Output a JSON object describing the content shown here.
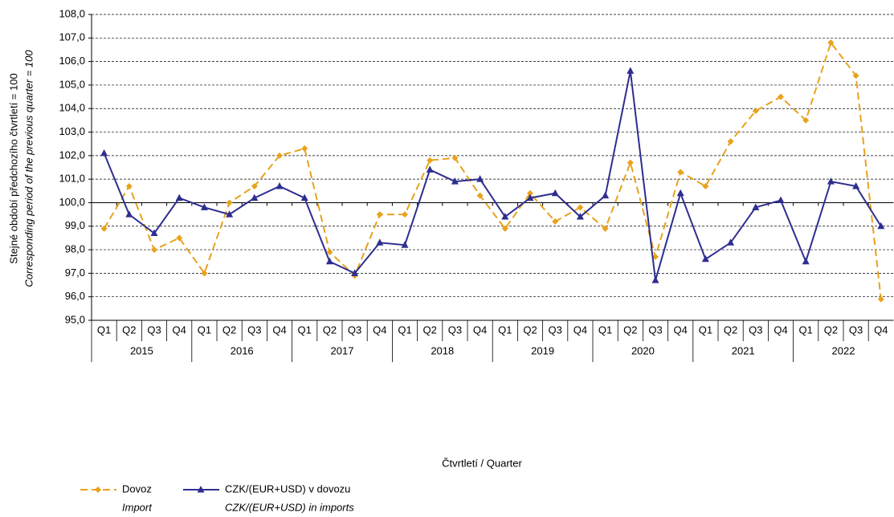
{
  "chart_data": {
    "type": "line",
    "y_title": "Stejné období předchozího čtvrtletí = 100",
    "y_title_en": "Corresponding period of  the previous quarter = 100",
    "x_title": "Čtvrtletí / Quarter",
    "categories": [
      "Q1",
      "Q2",
      "Q3",
      "Q4",
      "Q1",
      "Q2",
      "Q3",
      "Q4",
      "Q1",
      "Q2",
      "Q3",
      "Q4",
      "Q1",
      "Q2",
      "Q3",
      "Q4",
      "Q1",
      "Q2",
      "Q3",
      "Q4",
      "Q1",
      "Q2",
      "Q3",
      "Q4",
      "Q1",
      "Q2",
      "Q3",
      "Q4",
      "Q1",
      "Q2",
      "Q3",
      "Q4"
    ],
    "years": [
      "2015",
      "2016",
      "2017",
      "2018",
      "2019",
      "2020",
      "2021",
      "2022"
    ],
    "series": [
      {
        "name": "Dovoz",
        "name_en": "Import",
        "color": "#e8a21c",
        "values": [
          98.9,
          100.7,
          98.0,
          98.5,
          97.0,
          100.0,
          100.7,
          102.0,
          102.3,
          97.9,
          96.9,
          99.5,
          99.5,
          101.8,
          101.9,
          100.3,
          98.9,
          100.4,
          99.2,
          99.8,
          98.9,
          101.7,
          97.7,
          101.3,
          100.7,
          102.6,
          103.9,
          104.5,
          103.5,
          106.8,
          105.4,
          95.9
        ]
      },
      {
        "name": "CZK/(EUR+USD) v dovozu",
        "name_en": "CZK/(EUR+USD) in imports",
        "color": "#2e2e8f",
        "values": [
          102.1,
          99.5,
          98.7,
          100.2,
          99.8,
          99.5,
          100.2,
          100.7,
          100.2,
          97.5,
          97.0,
          98.3,
          98.2,
          101.4,
          100.9,
          101.0,
          99.4,
          100.2,
          100.4,
          99.4,
          100.3,
          105.6,
          96.7,
          100.4,
          97.6,
          98.3,
          99.8,
          100.1,
          97.5,
          100.9,
          100.7,
          99.0
        ]
      }
    ],
    "ylim": [
      95,
      108
    ],
    "yticks": [
      {
        "value": 95,
        "label": "95,0"
      },
      {
        "value": 96,
        "label": "96,0"
      },
      {
        "value": 97,
        "label": "97,0"
      },
      {
        "value": 98,
        "label": "98,0"
      },
      {
        "value": 99,
        "label": "99,0"
      },
      {
        "value": 100,
        "label": "100,0"
      },
      {
        "value": 101,
        "label": "101,0"
      },
      {
        "value": 102,
        "label": "102,0"
      },
      {
        "value": 103,
        "label": "103,0"
      },
      {
        "value": 104,
        "label": "104,0"
      },
      {
        "value": 105,
        "label": "105,0"
      },
      {
        "value": 106,
        "label": "106,0"
      },
      {
        "value": 107,
        "label": "107,0"
      },
      {
        "value": 108,
        "label": "108,0"
      }
    ],
    "grid": true
  }
}
